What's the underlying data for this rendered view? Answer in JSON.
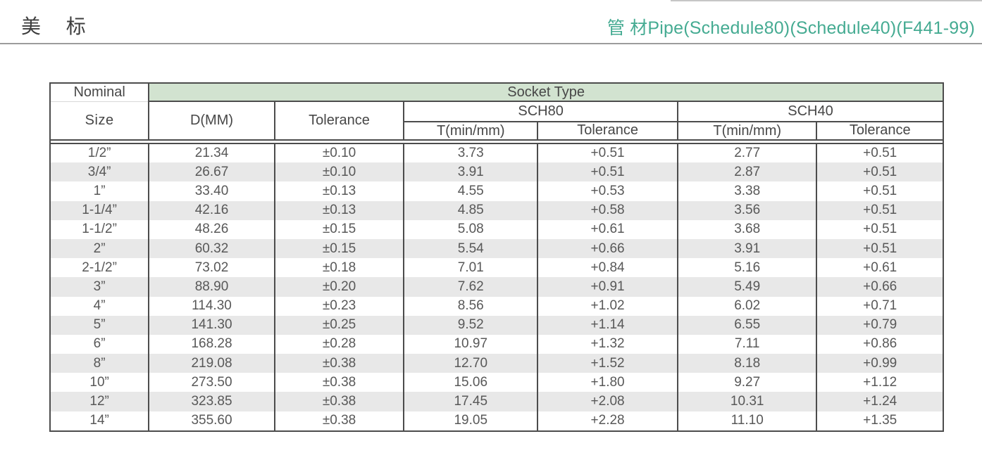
{
  "page": {
    "title_left": "美 标",
    "title_right": "管 材Pipe(Schedule80)(Schedule40)(F441-99)",
    "accent_color": "#45ab92",
    "socket_band_color": "#d2e3d0",
    "alt_row_color": "#e8e8e8",
    "border_color": "#4c4c4c"
  },
  "table": {
    "header": {
      "nominal": "Nominal",
      "size": "Size",
      "d_mm": "D(MM)",
      "tolerance": "Tolerance",
      "socket_type": "Socket Type",
      "sch80": "SCH80",
      "sch40": "SCH40",
      "t_min": "T(min/mm)",
      "sub_tolerance": "Tolerance"
    },
    "columns": [
      "size",
      "d",
      "tol",
      "sch80_t",
      "sch80_tol",
      "sch40_t",
      "sch40_tol"
    ],
    "rows": [
      {
        "size": "1/2”",
        "d": "21.34",
        "tol": "±0.10",
        "sch80_t": "3.73",
        "sch80_tol": "+0.51",
        "sch40_t": "2.77",
        "sch40_tol": "+0.51"
      },
      {
        "size": "3/4”",
        "d": "26.67",
        "tol": "±0.10",
        "sch80_t": "3.91",
        "sch80_tol": "+0.51",
        "sch40_t": "2.87",
        "sch40_tol": "+0.51"
      },
      {
        "size": "1”",
        "d": "33.40",
        "tol": "±0.13",
        "sch80_t": "4.55",
        "sch80_tol": "+0.53",
        "sch40_t": "3.38",
        "sch40_tol": "+0.51"
      },
      {
        "size": "1-1/4”",
        "d": "42.16",
        "tol": "±0.13",
        "sch80_t": "4.85",
        "sch80_tol": "+0.58",
        "sch40_t": "3.56",
        "sch40_tol": "+0.51"
      },
      {
        "size": "1-1/2”",
        "d": "48.26",
        "tol": "±0.15",
        "sch80_t": "5.08",
        "sch80_tol": "+0.61",
        "sch40_t": "3.68",
        "sch40_tol": "+0.51"
      },
      {
        "size": "2”",
        "d": "60.32",
        "tol": "±0.15",
        "sch80_t": "5.54",
        "sch80_tol": "+0.66",
        "sch40_t": "3.91",
        "sch40_tol": "+0.51"
      },
      {
        "size": "2-1/2”",
        "d": "73.02",
        "tol": "±0.18",
        "sch80_t": "7.01",
        "sch80_tol": "+0.84",
        "sch40_t": "5.16",
        "sch40_tol": "+0.61"
      },
      {
        "size": "3”",
        "d": "88.90",
        "tol": "±0.20",
        "sch80_t": "7.62",
        "sch80_tol": "+0.91",
        "sch40_t": "5.49",
        "sch40_tol": "+0.66"
      },
      {
        "size": "4”",
        "d": "114.30",
        "tol": "±0.23",
        "sch80_t": "8.56",
        "sch80_tol": "+1.02",
        "sch40_t": "6.02",
        "sch40_tol": "+0.71"
      },
      {
        "size": "5”",
        "d": "141.30",
        "tol": "±0.25",
        "sch80_t": "9.52",
        "sch80_tol": "+1.14",
        "sch40_t": "6.55",
        "sch40_tol": "+0.79"
      },
      {
        "size": "6”",
        "d": "168.28",
        "tol": "±0.28",
        "sch80_t": "10.97",
        "sch80_tol": "+1.32",
        "sch40_t": "7.11",
        "sch40_tol": "+0.86"
      },
      {
        "size": "8”",
        "d": "219.08",
        "tol": "±0.38",
        "sch80_t": "12.70",
        "sch80_tol": "+1.52",
        "sch40_t": "8.18",
        "sch40_tol": "+0.99"
      },
      {
        "size": "10”",
        "d": "273.50",
        "tol": "±0.38",
        "sch80_t": "15.06",
        "sch80_tol": "+1.80",
        "sch40_t": "9.27",
        "sch40_tol": "+1.12"
      },
      {
        "size": "12”",
        "d": "323.85",
        "tol": "±0.38",
        "sch80_t": "17.45",
        "sch80_tol": "+2.08",
        "sch40_t": "10.31",
        "sch40_tol": "+1.24"
      },
      {
        "size": "14”",
        "d": "355.60",
        "tol": "±0.38",
        "sch80_t": "19.05",
        "sch80_tol": "+2.28",
        "sch40_t": "11.10",
        "sch40_tol": "+1.35"
      }
    ]
  }
}
